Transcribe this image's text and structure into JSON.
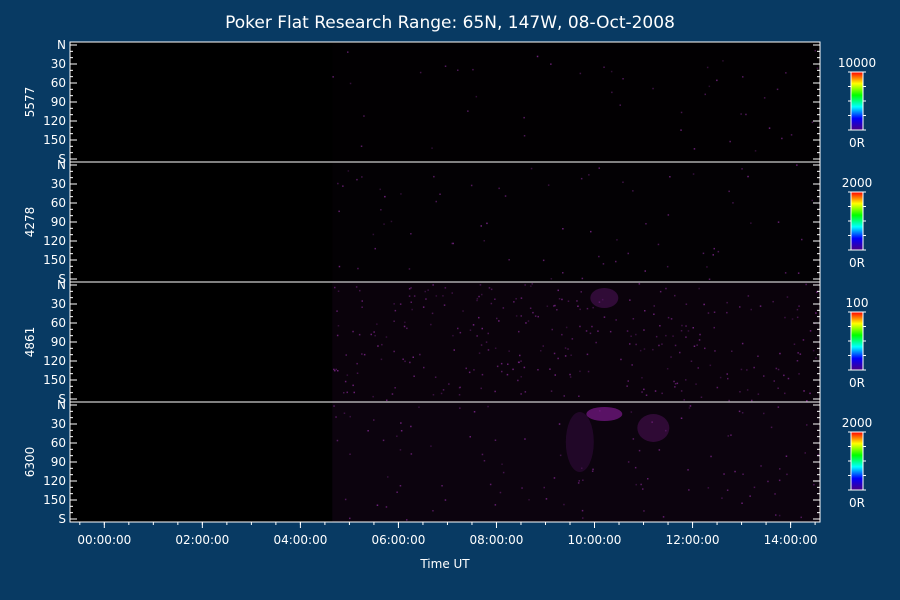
{
  "chart_data": {
    "type": "heatmap",
    "title": "Poker Flat Research Range: 65N, 147W, 08-Oct-2008",
    "xlabel": "Time UT",
    "x_tick_labels": [
      "00:00:00",
      "02:00:00",
      "04:00:00",
      "06:00:00",
      "08:00:00",
      "10:00:00",
      "12:00:00",
      "14:00:00"
    ],
    "x_ticks_hours": [
      0,
      2,
      4,
      6,
      8,
      10,
      12,
      14
    ],
    "xlim_hours": [
      -0.7,
      14.6
    ],
    "data_start_hours": 4.65,
    "y_tick_labels": [
      "N",
      "30",
      "60",
      "90",
      "120",
      "150",
      "S"
    ],
    "ylim": [
      0,
      180
    ],
    "panels": [
      {
        "wavelength": "5577",
        "colorbar_max": "10000",
        "colorbar_min": "0R",
        "intensity": 0.04,
        "noise": 0.05
      },
      {
        "wavelength": "4278",
        "colorbar_max": "2000",
        "colorbar_min": "0R",
        "intensity": 0.06,
        "noise": 0.08
      },
      {
        "wavelength": "4861",
        "colorbar_max": "100",
        "colorbar_min": "0R",
        "intensity": 0.18,
        "noise": 0.35
      },
      {
        "wavelength": "6300",
        "colorbar_max": "2000",
        "colorbar_min": "0R",
        "intensity": 0.22,
        "noise": 0.12
      }
    ],
    "colormap": [
      "#4b0082",
      "#0000ff",
      "#00ffff",
      "#00ff00",
      "#ffff00",
      "#ff0000"
    ],
    "colors": {
      "background": "#083a63",
      "plot": "#000000",
      "axis": "#ffffff",
      "signal": "#5a1466"
    }
  }
}
